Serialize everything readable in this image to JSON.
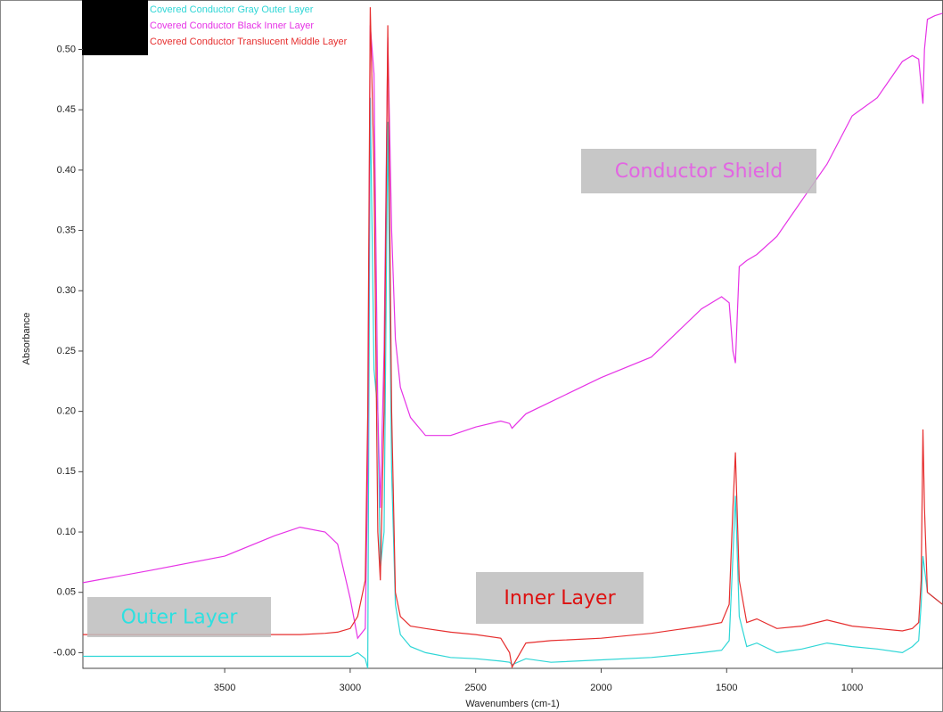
{
  "chart_data": {
    "type": "line",
    "x_label": "Wavenumbers (cm-1)",
    "y_label": "Absorbance",
    "xlim": [
      4065,
      638
    ],
    "ylim": [
      -0.013,
      0.541
    ],
    "xticks": [
      3500,
      3000,
      2500,
      2000,
      1500,
      1000
    ],
    "yticks": [
      {
        "value": 0,
        "label": "-0.00"
      },
      {
        "value": 0.05,
        "label": "0.05"
      },
      {
        "value": 0.1,
        "label": "0.10"
      },
      {
        "value": 0.15,
        "label": "0.15"
      },
      {
        "value": 0.2,
        "label": "0.20"
      },
      {
        "value": 0.25,
        "label": "0.25"
      },
      {
        "value": 0.3,
        "label": "0.30"
      },
      {
        "value": 0.35,
        "label": "0.35"
      },
      {
        "value": 0.4,
        "label": "0.40"
      },
      {
        "value": 0.45,
        "label": "0.45"
      },
      {
        "value": 0.5,
        "label": "0.50"
      }
    ],
    "x": [
      4065,
      3800,
      3500,
      3300,
      3200,
      3100,
      3050,
      3000,
      2970,
      2940,
      2930,
      2920,
      2905,
      2890,
      2880,
      2865,
      2850,
      2835,
      2820,
      2800,
      2760,
      2700,
      2600,
      2500,
      2400,
      2365,
      2355,
      2300,
      2200,
      2000,
      1800,
      1600,
      1520,
      1490,
      1475,
      1465,
      1450,
      1420,
      1380,
      1300,
      1200,
      1100,
      1000,
      900,
      800,
      760,
      735,
      725,
      718,
      712,
      700,
      670,
      640
    ],
    "series": [
      {
        "name": "Covered Conductor Gray Outer Layer",
        "color": "#2ed6d6",
        "values": [
          -0.003,
          -0.003,
          -0.003,
          -0.003,
          -0.003,
          -0.003,
          -0.003,
          -0.003,
          0.0,
          -0.005,
          -0.013,
          0.46,
          0.235,
          0.2,
          0.07,
          0.1,
          0.44,
          0.15,
          0.04,
          0.015,
          0.005,
          0.0,
          -0.004,
          -0.005,
          -0.007,
          -0.008,
          -0.01,
          -0.005,
          -0.008,
          -0.006,
          -0.004,
          0.0,
          0.002,
          0.01,
          0.08,
          0.13,
          0.03,
          0.005,
          0.008,
          0.0,
          0.003,
          0.008,
          0.005,
          0.003,
          0.0,
          0.005,
          0.01,
          0.04,
          0.08,
          0.07,
          0.05,
          0.045,
          0.04
        ]
      },
      {
        "name": "Covered Conductor Black Inner Layer",
        "color": "#e633e6",
        "values": [
          0.058,
          0.068,
          0.08,
          0.097,
          0.104,
          0.1,
          0.09,
          0.045,
          0.012,
          0.02,
          0.15,
          0.52,
          0.48,
          0.2,
          0.12,
          0.25,
          0.51,
          0.35,
          0.26,
          0.22,
          0.195,
          0.18,
          0.18,
          0.187,
          0.192,
          0.19,
          0.186,
          0.198,
          0.208,
          0.228,
          0.245,
          0.285,
          0.295,
          0.29,
          0.25,
          0.24,
          0.32,
          0.325,
          0.33,
          0.345,
          0.375,
          0.405,
          0.445,
          0.46,
          0.49,
          0.495,
          0.492,
          0.47,
          0.455,
          0.5,
          0.525,
          0.528,
          0.53
        ]
      },
      {
        "name": "Covered Conductor Translucent Middle Layer",
        "color": "#e62e2e",
        "values": [
          0.015,
          0.015,
          0.015,
          0.015,
          0.015,
          0.016,
          0.017,
          0.02,
          0.03,
          0.06,
          0.2,
          0.535,
          0.4,
          0.1,
          0.06,
          0.2,
          0.52,
          0.2,
          0.05,
          0.03,
          0.022,
          0.02,
          0.017,
          0.015,
          0.012,
          0.0,
          -0.012,
          0.008,
          0.01,
          0.012,
          0.016,
          0.022,
          0.025,
          0.04,
          0.12,
          0.166,
          0.06,
          0.025,
          0.028,
          0.02,
          0.022,
          0.027,
          0.022,
          0.02,
          0.018,
          0.02,
          0.025,
          0.06,
          0.185,
          0.12,
          0.05,
          0.045,
          0.04
        ]
      }
    ],
    "annotations": [
      {
        "text": "Conductor Shield",
        "color": "#e266e2"
      },
      {
        "text": "Outer Layer",
        "color": "#2ee0e0"
      },
      {
        "text": "Inner Layer",
        "color": "#dd1111"
      }
    ]
  }
}
